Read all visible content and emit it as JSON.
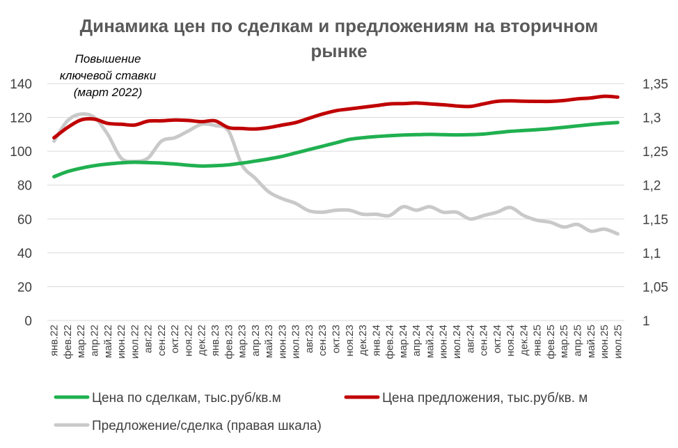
{
  "chart_data": {
    "type": "line",
    "title_line1": "Динамика цен по сделкам и предложениям на вторичном",
    "title_line2": "рынке",
    "annotation": [
      "Повышение",
      "ключевой ставки",
      "(март 2022)"
    ],
    "y_left": {
      "lim": [
        0,
        140
      ],
      "ticks": [
        "0",
        "20",
        "40",
        "60",
        "80",
        "100",
        "120",
        "140"
      ]
    },
    "y_right": {
      "lim": [
        1,
        1.35
      ],
      "ticks": [
        "1",
        "1,05",
        "1,1",
        "1,15",
        "1,2",
        "1,25",
        "1,3",
        "1,35"
      ]
    },
    "grid": true,
    "legend_position": "bottom",
    "categories": [
      "янв.22",
      "фев.22",
      "мар.22",
      "апр.22",
      "май.22",
      "июн.22",
      "июл.22",
      "авг.22",
      "сен.22",
      "окт.22",
      "ноя.22",
      "дек.22",
      "янв.23",
      "фев.23",
      "мар.23",
      "апр.23",
      "май.23",
      "июн.23",
      "июл.23",
      "авг.23",
      "сен.23",
      "окт.23",
      "ноя.23",
      "дек.23",
      "янв.24",
      "фев.24",
      "мар.24",
      "апр.24",
      "май.24",
      "июн.24",
      "июл.24",
      "авг.24",
      "сен.24",
      "окт.24",
      "ноя.24",
      "дек.24",
      "янв.25",
      "фев.25",
      "мар.25",
      "апр.25",
      "май.25",
      "июн.25",
      "июл.25"
    ],
    "series": [
      {
        "name": "Цена по сделкам, тыс.руб/кв.м",
        "axis": "left",
        "color": "#20b050",
        "values": [
          85,
          88,
          90,
          91.5,
          92.5,
          93.2,
          93.5,
          93.3,
          93,
          92.5,
          91.8,
          91.3,
          91.5,
          92,
          93,
          94.2,
          95.5,
          97,
          99,
          101,
          103,
          105,
          107,
          108,
          108.7,
          109.2,
          109.6,
          109.8,
          110,
          109.8,
          109.7,
          109.8,
          110.2,
          111,
          111.8,
          112.3,
          112.8,
          113.4,
          114.2,
          115,
          115.8,
          116.5,
          117
        ]
      },
      {
        "name": "Цена предложения, тыс.руб/кв. м",
        "axis": "left",
        "color": "#c00000",
        "values": [
          108,
          114,
          118.5,
          119,
          116.5,
          116,
          115.5,
          117.8,
          118,
          118.5,
          118.2,
          117.5,
          118,
          114,
          113.5,
          113.2,
          114,
          115.5,
          117,
          119.5,
          122,
          124,
          125,
          126,
          127,
          128,
          128.2,
          128.5,
          128,
          127.5,
          126.8,
          126.5,
          128,
          129.5,
          129.8,
          129.6,
          129.5,
          129.5,
          130,
          131,
          131.5,
          132.5,
          132
        ]
      },
      {
        "name": "Предложение/сделка (правая шкала)",
        "axis": "right",
        "color": "#c9c9c9",
        "values": [
          1.265,
          1.295,
          1.305,
          1.3,
          1.275,
          1.24,
          1.235,
          1.24,
          1.265,
          1.27,
          1.28,
          1.29,
          1.288,
          1.28,
          1.23,
          1.21,
          1.19,
          1.18,
          1.173,
          1.162,
          1.16,
          1.163,
          1.163,
          1.157,
          1.157,
          1.155,
          1.168,
          1.163,
          1.168,
          1.16,
          1.16,
          1.15,
          1.155,
          1.16,
          1.167,
          1.155,
          1.148,
          1.145,
          1.138,
          1.142,
          1.132,
          1.135,
          1.128
        ]
      }
    ]
  }
}
